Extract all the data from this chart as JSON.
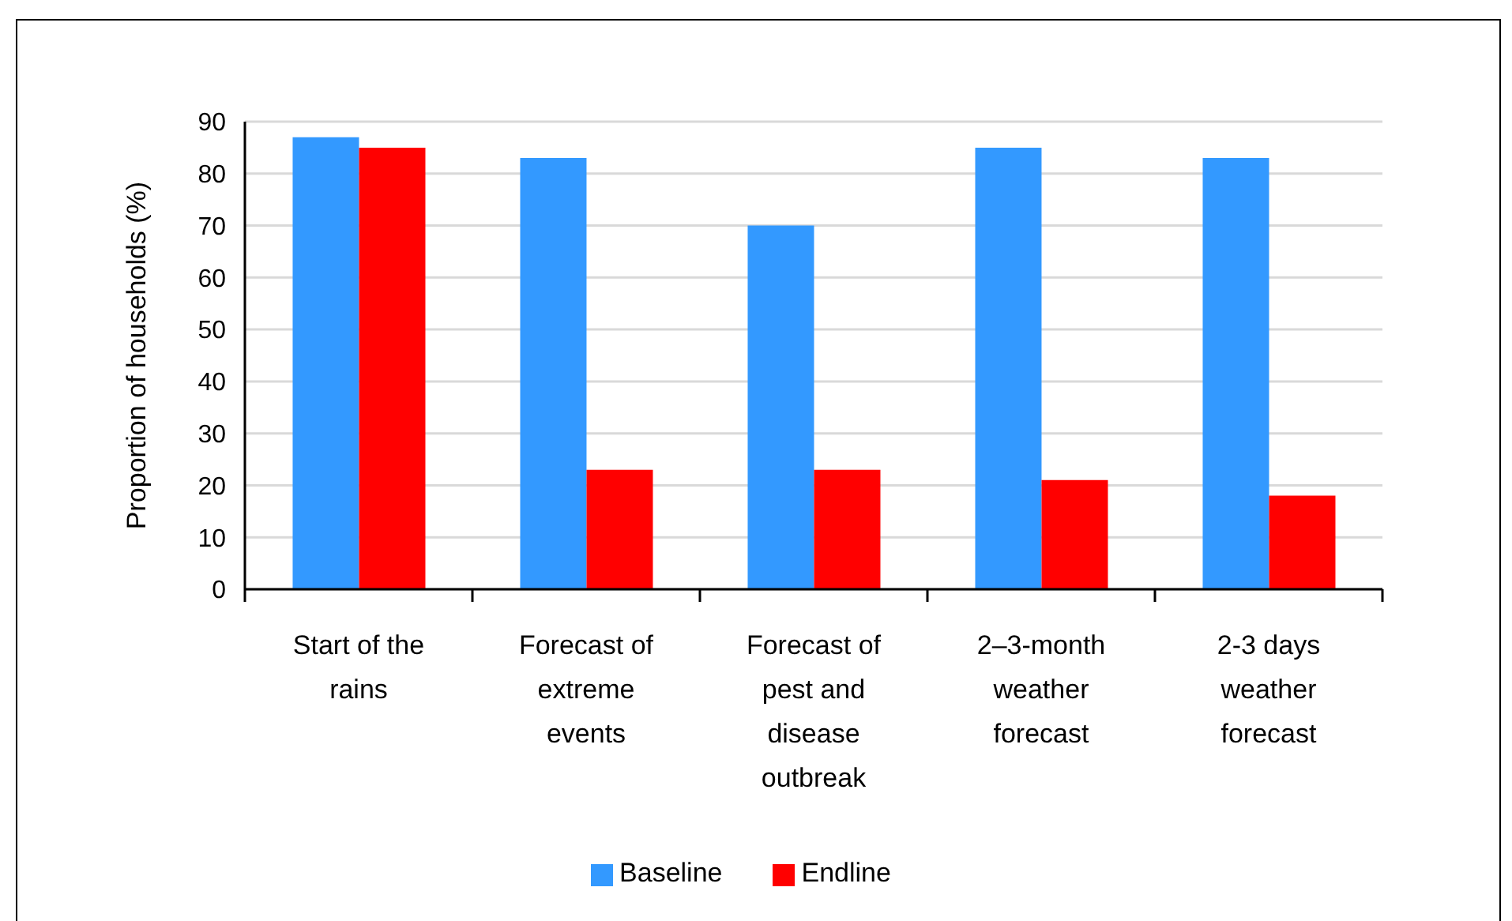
{
  "chart_data": {
    "type": "bar",
    "ylabel": "Proportion of households (%)",
    "categories": [
      "Start of the rains",
      "Forecast of extreme events",
      "Forecast of pest and disease outbreak",
      "2–3-month weather forecast",
      "2-3 days weather forecast"
    ],
    "series": [
      {
        "name": "Baseline",
        "color": "#3399ff",
        "values": [
          87,
          83,
          70,
          85,
          83
        ]
      },
      {
        "name": "Endline",
        "color": "#ff0000",
        "values": [
          85,
          23,
          23,
          21,
          18
        ]
      }
    ],
    "ylim": [
      0,
      90
    ],
    "yticks": [
      0,
      10,
      20,
      30,
      40,
      50,
      60,
      70,
      80,
      90
    ],
    "grid": "y",
    "legend": "bottom"
  }
}
